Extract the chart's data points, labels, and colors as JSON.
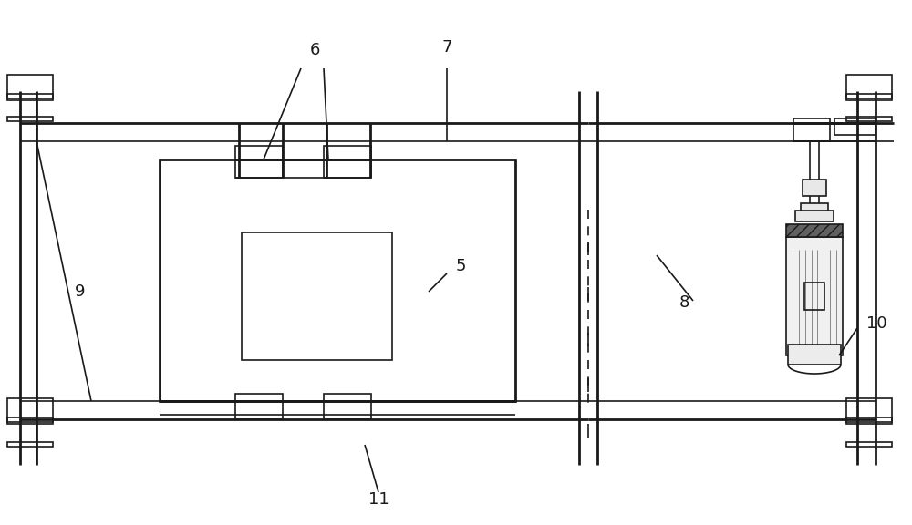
{
  "bg_color": "#ffffff",
  "lc": "#1a1a1a",
  "lw": 1.2,
  "lw2": 2.0,
  "figw": 10.0,
  "figh": 5.76
}
